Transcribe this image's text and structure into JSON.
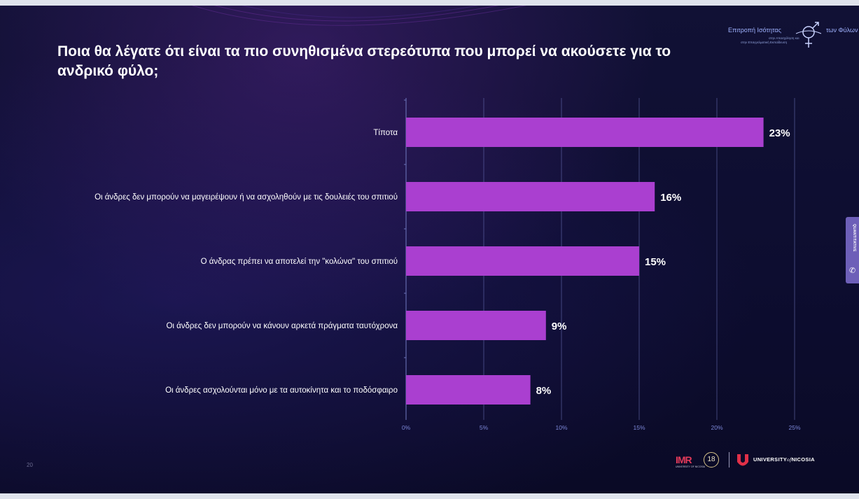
{
  "title": "Ποια θα λέγατε ότι είναι τα πιο συνηθισμένα στερεότυπα που μπορεί να ακούσετε για το ανδρικό φύλο;",
  "logo": {
    "text_main": "Επιτροπή Ισότητας",
    "text_right": "των Φύλων",
    "subtext_1": "στην Απασχόληση και",
    "subtext_2": "στην Επαγγελματική Εκπαίδευση"
  },
  "side_tab": {
    "label": "QUANTITATIVE",
    "icon": "phone-icon"
  },
  "page_number": "20",
  "footer": {
    "imr_logo": "IMR",
    "imr_sub": "UNIVERSITY OF NICOSIA",
    "badge": "18",
    "university_text_1": "UNIVERSITY",
    "university_text_of": "of",
    "university_text_2": "NICOSIA"
  },
  "colors": {
    "bar": "#aa3fd0",
    "grid": "#6b73b8",
    "tick_text": "#7b86d6",
    "background": "#0d0d30"
  },
  "chart_data": {
    "type": "bar",
    "orientation": "horizontal",
    "categories": [
      "Τίποτα",
      "Οι άνδρες δεν μπορούν να μαγειρέψουν ή να ασχοληθούν με τις δουλειές του σπιτιού",
      "Ο άνδρας πρέπει να αποτελεί την \"κολώνα\" του σπιτιού",
      "Οι άνδρες δεν μπορούν να κάνουν αρκετά πράγματα ταυτόχρονα",
      "Οι άνδρες ασχολούνται μόνο με τα αυτοκίνητα και το ποδόσφαιρο"
    ],
    "values": [
      23,
      16,
      15,
      9,
      8
    ],
    "value_labels": [
      "23%",
      "16%",
      "15%",
      "9%",
      "8%"
    ],
    "xticks": [
      0,
      5,
      10,
      15,
      20,
      25
    ],
    "xtick_labels": [
      "0%",
      "5%",
      "10%",
      "15%",
      "20%",
      "25%"
    ],
    "xlim": [
      0,
      25
    ],
    "grid": true,
    "legend": "none"
  }
}
